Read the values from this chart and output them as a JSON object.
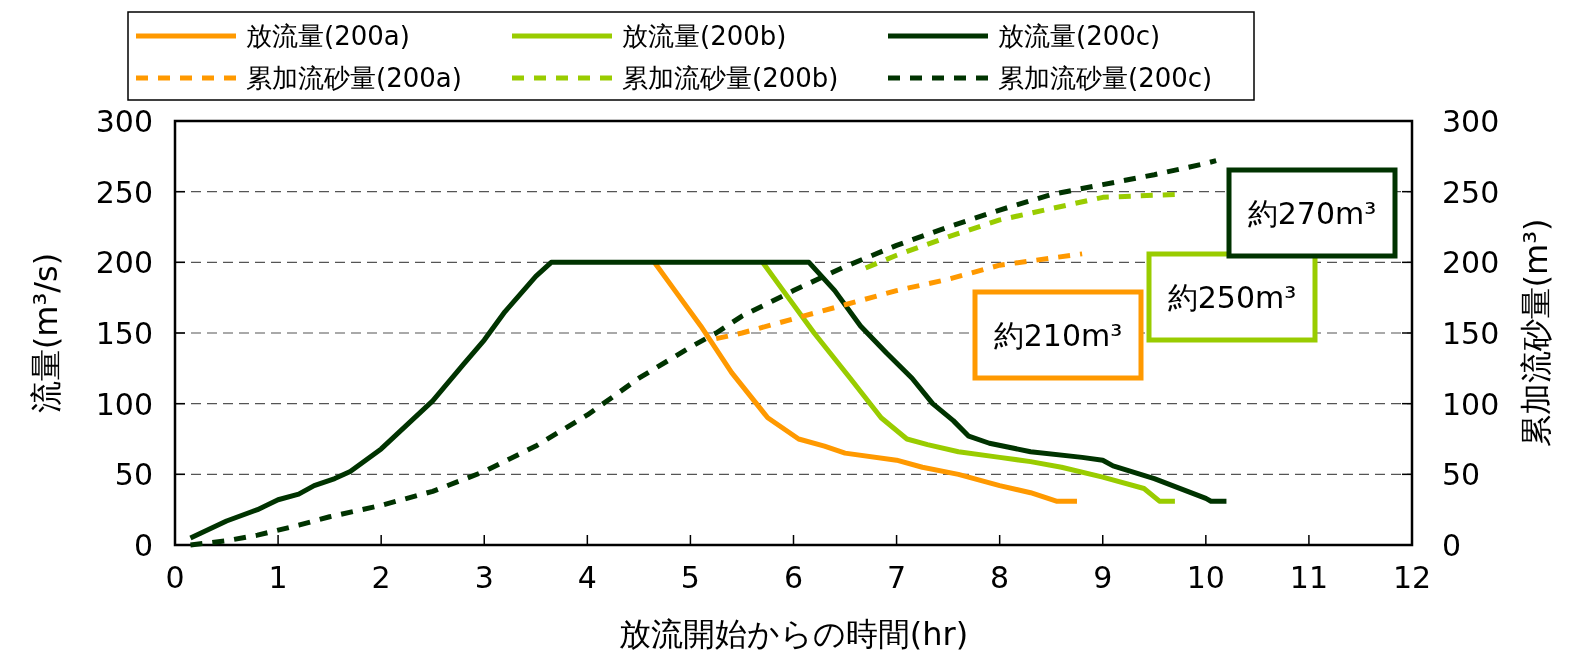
{
  "chart_data": {
    "type": "line",
    "xlabel": "放流開始からの時間(hr)",
    "ylabel": "流量(m³/s)",
    "y2label": "累加流砂量(m³)",
    "xlim": [
      0,
      12
    ],
    "xticks": [
      0,
      1,
      2,
      3,
      4,
      5,
      6,
      7,
      8,
      9,
      10,
      11,
      12
    ],
    "ylim": [
      0,
      300
    ],
    "yticks": [
      0,
      50,
      100,
      150,
      200,
      250,
      300
    ],
    "y2lim": [
      0,
      300
    ],
    "y2ticks": [
      0,
      50,
      100,
      150,
      200,
      250,
      300
    ],
    "grid": "y",
    "legend": "top",
    "series": [
      {
        "name": "放流量(200a)",
        "color": "#ff9900",
        "line_style": "solid",
        "x": [
          4.65,
          4.85,
          5.1,
          5.4,
          5.75,
          6.05,
          6.3,
          6.5,
          7,
          7.25,
          7.6,
          8,
          8.3,
          8.55,
          8.75
        ],
        "values": [
          200,
          180,
          155,
          122,
          90,
          75,
          70,
          65,
          60,
          55,
          50,
          42,
          37,
          31,
          31
        ]
      },
      {
        "name": "放流量(200b)",
        "color": "#99cc00",
        "line_style": "solid",
        "x": [
          5.7,
          5.9,
          6.2,
          6.55,
          6.85,
          7.1,
          7.3,
          7.6,
          8,
          8.3,
          8.6,
          9,
          9.4,
          9.55,
          9.7
        ],
        "values": [
          200,
          180,
          150,
          118,
          90,
          75,
          71,
          66,
          62,
          59,
          55,
          48,
          40,
          31,
          31
        ]
      },
      {
        "name": "放流量(200c)",
        "color": "#003300",
        "line_style": "solid",
        "x": [
          0.15,
          0.5,
          0.8,
          1,
          1.2,
          1.35,
          1.55,
          1.7,
          2,
          2.5,
          2.8,
          3,
          3.2,
          3.5,
          3.65,
          6.15,
          6.4,
          6.65,
          6.9,
          7.15,
          7.35,
          7.55,
          7.7,
          7.9,
          8.3,
          8.8,
          9,
          9.1,
          9.5,
          10,
          10.05,
          10.2
        ],
        "values": [
          5,
          17,
          25,
          32,
          36,
          42,
          47,
          52,
          68,
          102,
          128,
          145,
          165,
          190,
          200,
          200,
          180,
          155,
          136,
          118,
          100,
          88,
          77,
          72,
          66,
          62,
          60,
          56,
          47,
          33,
          31,
          31
        ]
      },
      {
        "name": "累加流砂量(200a)",
        "color": "#ff9900",
        "line_style": "dashed",
        "axis": "y2",
        "x": [
          5.25,
          5.5,
          6,
          6.5,
          7,
          7.5,
          8,
          8.5,
          8.8
        ],
        "values": [
          146,
          150,
          160,
          170,
          180,
          188,
          198,
          203,
          206
        ]
      },
      {
        "name": "累加流砂量(200b)",
        "color": "#99cc00",
        "line_style": "dashed",
        "axis": "y2",
        "x": [
          6.7,
          7,
          7.5,
          8,
          8.5,
          9,
          9.7
        ],
        "values": [
          196,
          205,
          218,
          230,
          238,
          246,
          248
        ]
      },
      {
        "name": "累加流砂量(200c)",
        "color": "#003300",
        "line_style": "dashed",
        "axis": "y2",
        "x": [
          0.15,
          0.5,
          0.8,
          1.2,
          1.5,
          2,
          2.5,
          3,
          3.5,
          4,
          4.5,
          5,
          5.25,
          5.5,
          6,
          6.5,
          7,
          7.5,
          8,
          8.5,
          9,
          9.5,
          10,
          10.1
        ],
        "values": [
          0,
          3,
          7,
          14,
          20,
          28,
          38,
          52,
          70,
          92,
          118,
          140,
          150,
          162,
          180,
          197,
          212,
          225,
          237,
          248,
          255,
          262,
          270,
          272
        ]
      }
    ],
    "annotations": [
      "約210m³",
      "約250m³",
      "約270m³"
    ]
  }
}
